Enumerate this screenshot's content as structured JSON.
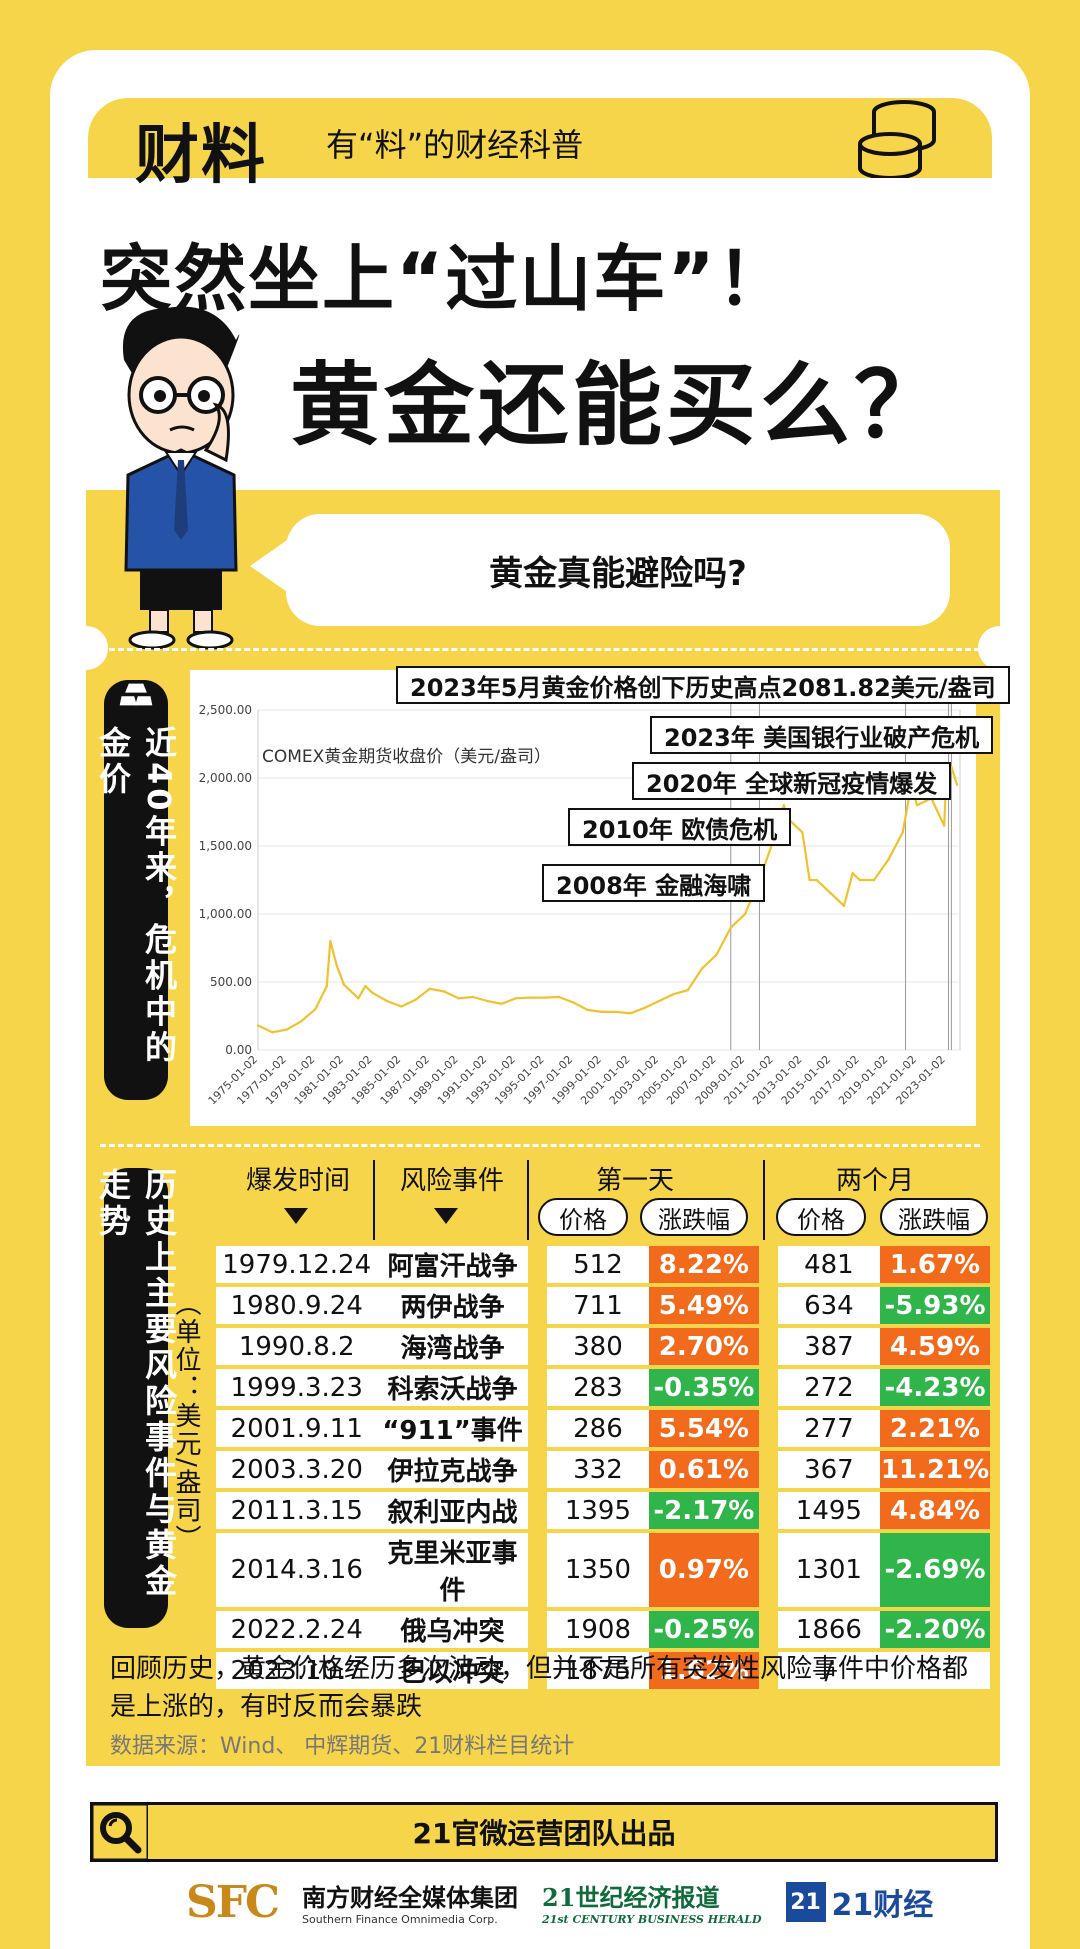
{
  "header": {
    "brand": "财料",
    "slogan": "有“料”的财经科普"
  },
  "title": {
    "line1": "突然坐上“过山车”！",
    "line2": "黄金还能买么？"
  },
  "bubble": {
    "text": "黄金真能避险吗?"
  },
  "section1": {
    "label": "近40年来，危机中的金价"
  },
  "section2": {
    "label": "历史上主要风险事件与黄金走势",
    "unit": "（单位：美元/盎司）"
  },
  "chart_data": {
    "type": "line",
    "ylabel": "COMEX黄金期货收盘价（美元/盎司）",
    "ylim": [
      0,
      2500
    ],
    "yticks": [
      "0.00",
      "500.00",
      "1,000.00",
      "1,500.00",
      "2,000.00",
      "2,500.00"
    ],
    "xticks": [
      "1975-01-02",
      "1977-01-02",
      "1979-01-02",
      "1981-01-02",
      "1983-01-02",
      "1985-01-02",
      "1987-01-02",
      "1989-01-02",
      "1991-01-02",
      "1993-01-02",
      "1995-01-02",
      "1997-01-02",
      "1999-01-02",
      "2001-01-02",
      "2003-01-02",
      "2005-01-02",
      "2007-01-02",
      "2009-01-02",
      "2011-01-02",
      "2013-01-02",
      "2015-01-02",
      "2017-01-02",
      "2019-01-02",
      "2021-01-02",
      "2023-01-02"
    ],
    "color": "#f2c12e",
    "x": [
      1975,
      1976,
      1977,
      1978,
      1979,
      1979.8,
      1980.05,
      1980.5,
      1981,
      1982,
      1982.5,
      1983,
      1984,
      1985,
      1986,
      1987,
      1988,
      1989,
      1990,
      1991,
      1992,
      1993,
      1994,
      1995,
      1996,
      1997,
      1998,
      1999,
      2000,
      2001,
      2002,
      2003,
      2004,
      2005,
      2006,
      2007,
      2008,
      2009,
      2010,
      2011,
      2011.7,
      2012,
      2013,
      2013.5,
      2014,
      2015,
      2015.9,
      2016.5,
      2017,
      2018,
      2019,
      2020,
      2020.6,
      2021,
      2022,
      2022.9,
      2023,
      2023.4,
      2023.8
    ],
    "values": [
      180,
      130,
      150,
      210,
      300,
      470,
      800,
      620,
      480,
      380,
      470,
      420,
      360,
      320,
      370,
      450,
      430,
      380,
      390,
      360,
      340,
      380,
      385,
      385,
      390,
      350,
      295,
      280,
      280,
      270,
      310,
      360,
      410,
      440,
      600,
      700,
      900,
      1000,
      1250,
      1550,
      1800,
      1700,
      1600,
      1250,
      1250,
      1150,
      1060,
      1300,
      1250,
      1250,
      1400,
      1600,
      1950,
      1800,
      1850,
      1650,
      1900,
      2081.82,
      1950
    ],
    "annotations": [
      {
        "text": "2023年5月黄金价格创下历史高点2081.82美元/盎司",
        "x": 2023.4
      },
      {
        "text": "2023年 美国银行业破产危机",
        "x": 2023.2
      },
      {
        "text": "2020年 全球新冠疫情爆发",
        "x": 2020.2
      },
      {
        "text": "2010年 欧债危机",
        "x": 2010.0
      },
      {
        "text": "2008年 金融海啸",
        "x": 2008.0
      }
    ]
  },
  "table": {
    "headers": {
      "time": "爆发时间",
      "event": "风险事件",
      "day1": "第一天",
      "month2": "两个月",
      "price": "价格",
      "change": "涨跌幅"
    },
    "rows": [
      {
        "date": "1979.12.24",
        "event": "阿富汗战争",
        "p1": "512",
        "c1": "8.22%",
        "c1dir": "up",
        "p2": "481",
        "c2": "1.67%",
        "c2dir": "up"
      },
      {
        "date": "1980.9.24",
        "event": "两伊战争",
        "p1": "711",
        "c1": "5.49%",
        "c1dir": "up",
        "p2": "634",
        "c2": "-5.93%",
        "c2dir": "down"
      },
      {
        "date": "1990.8.2",
        "event": "海湾战争",
        "p1": "380",
        "c1": "2.70%",
        "c1dir": "up",
        "p2": "387",
        "c2": "4.59%",
        "c2dir": "up"
      },
      {
        "date": "1999.3.23",
        "event": "科索沃战争",
        "p1": "283",
        "c1": "-0.35%",
        "c1dir": "down",
        "p2": "272",
        "c2": "-4.23%",
        "c2dir": "down"
      },
      {
        "date": "2001.9.11",
        "event": "“911”事件",
        "p1": "286",
        "c1": "5.54%",
        "c1dir": "up",
        "p2": "277",
        "c2": "2.21%",
        "c2dir": "up"
      },
      {
        "date": "2003.3.20",
        "event": "伊拉克战争",
        "p1": "332",
        "c1": "0.61%",
        "c1dir": "up",
        "p2": "367",
        "c2": "11.21%",
        "c2dir": "up"
      },
      {
        "date": "2011.3.15",
        "event": "叙利亚内战",
        "p1": "1395",
        "c1": "-2.17%",
        "c1dir": "down",
        "p2": "1495",
        "c2": "4.84%",
        "c2dir": "up"
      },
      {
        "date": "2014.3.16",
        "event": "克里米亚事件",
        "p1": "1350",
        "c1": "0.97%",
        "c1dir": "up",
        "p2": "1301",
        "c2": "-2.69%",
        "c2dir": "down"
      },
      {
        "date": "2022.2.24",
        "event": "俄乌冲突",
        "p1": "1908",
        "c1": "-0.25%",
        "c1dir": "down",
        "p2": "1866",
        "c2": "-2.20%",
        "c2dir": "down"
      },
      {
        "date": "2023.10.7",
        "event": "巴以冲突",
        "p1": "1875",
        "c1": "1.62%",
        "c1dir": "up",
        "p2": "/",
        "c2": "",
        "c2dir": "blank"
      }
    ]
  },
  "summary": "回顾历史，黄金价格经历多次波动，但并不是所有突发性风险事件中价格都是上涨的，有时反而会暴跌",
  "source": "数据来源：Wind、 中辉期货、21财料栏目统计",
  "footer": {
    "credit": "21官微运营团队出品",
    "logos": {
      "sfc_mark": "SFC",
      "sfc_cn": "南方财经全媒体集团",
      "sfc_en": "Southern Finance Omnimedia Corp.",
      "herald_cn": "21世纪经济报道",
      "herald_en": "21st CENTURY BUSINESS HERALD",
      "cj_mark": "21",
      "cj_name": "21财经"
    }
  }
}
